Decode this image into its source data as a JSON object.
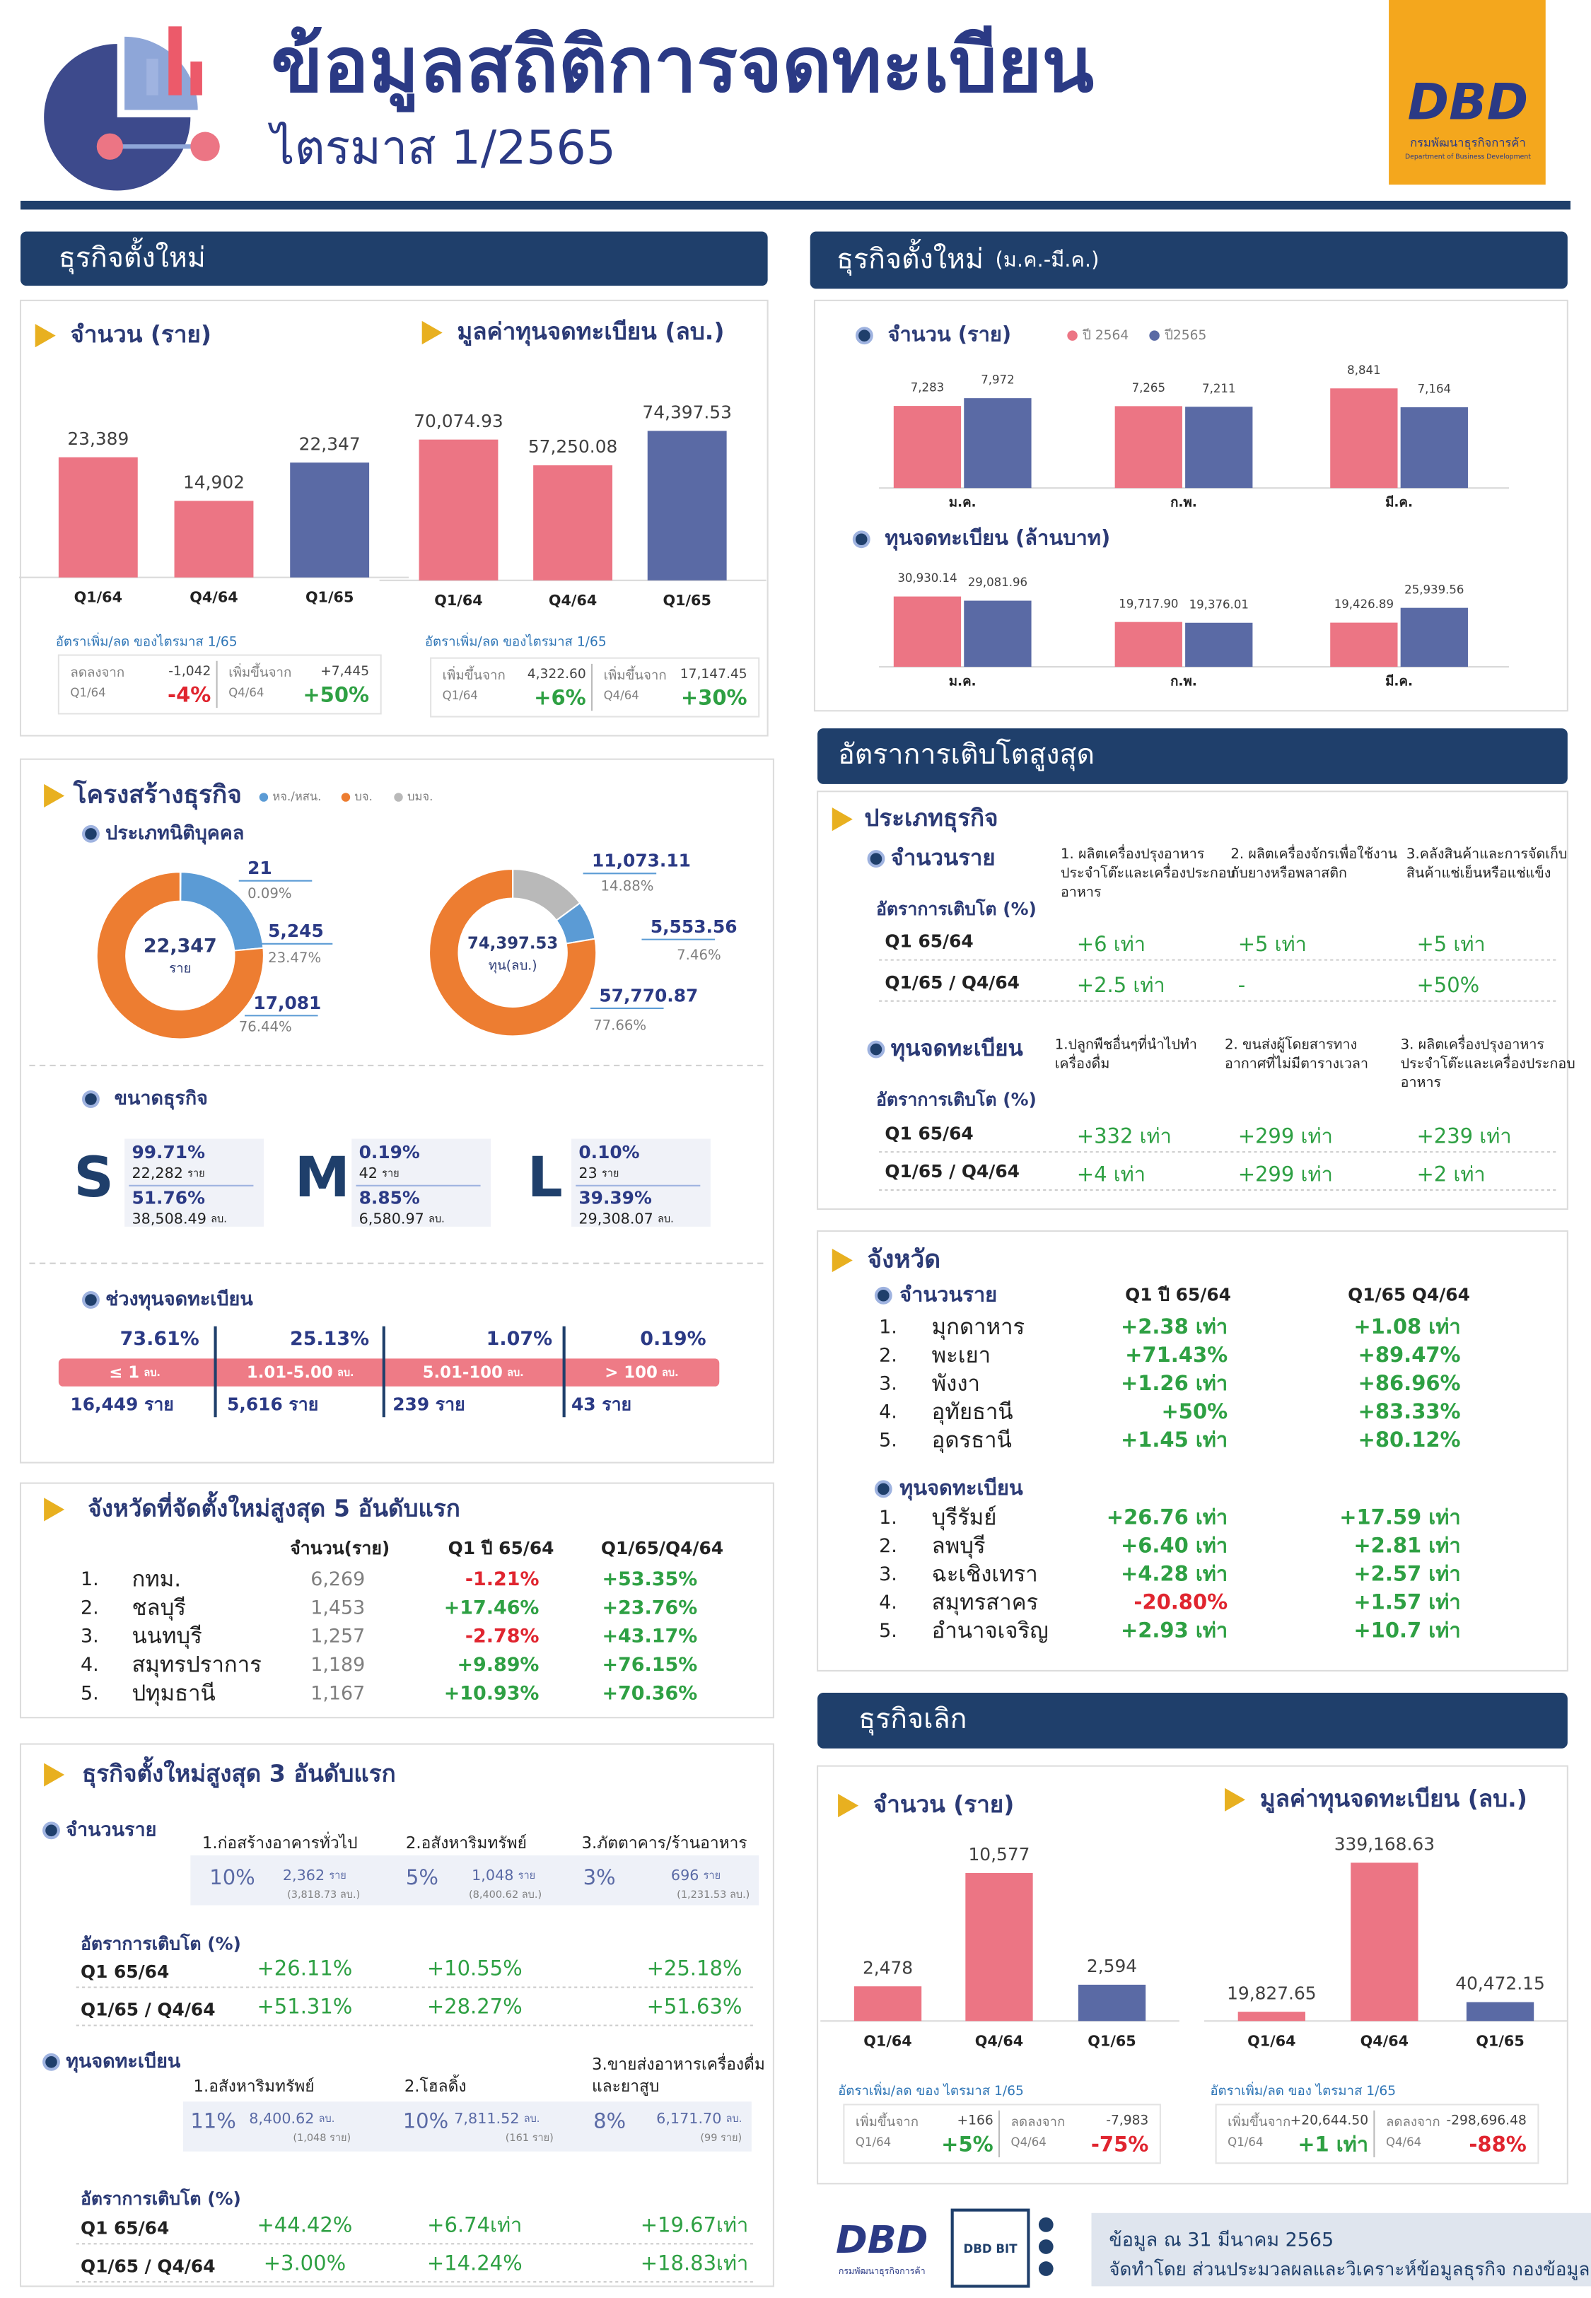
{
  "header": {
    "title": "ข้อมูลสถิติการจดทะเบียน",
    "subtitle": "ไตรมาส 1/2565",
    "logo": {
      "mark": "DBD",
      "name_th": "กรมพัฒนาธุรกิจการค้า",
      "name_en": "Department of Business Development"
    }
  },
  "new_business": {
    "heading": "ธุรกิจตั้งใหม่",
    "count_note": "อัตราเพิ่ม/ลด ของไตรมาส 1/65",
    "capital_note": "อัตราเพิ่ม/ลด ของไตรมาส 1/65",
    "count_change": [
      {
        "label": "ลดลงจาก",
        "period": "Q1/64",
        "amount": "-1,042",
        "percent": "-4%"
      },
      {
        "label": "เพิ่มขึ้นจาก",
        "period": "Q4/64",
        "amount": "+7,445",
        "percent": "+50%"
      }
    ],
    "capital_change": [
      {
        "label": "เพิ่มขึ้นจาก",
        "period": "Q1/64",
        "amount": "4,322.60",
        "percent": "+6%"
      },
      {
        "label": "เพิ่มขึ้นจาก",
        "period": "Q4/64",
        "amount": "17,147.45",
        "percent": "+30%"
      }
    ]
  },
  "monthly": {
    "heading": "ธุรกิจตั้งใหม่",
    "heading_sub": "(ม.ค.-มี.ค.)"
  },
  "chart_data": [
    {
      "type": "bar",
      "title": "จำนวน (ราย)",
      "categories": [
        "Q1/64",
        "Q4/64",
        "Q1/65"
      ],
      "values": [
        23389,
        14902,
        22347
      ],
      "value_labels": [
        "23,389",
        "14,902",
        "22,347"
      ],
      "colors": [
        "#ec7584",
        "#ec7584",
        "#5a6aa5"
      ]
    },
    {
      "type": "bar",
      "title": "มูลค่าทุนจดทะเบียน (ลบ.)",
      "categories": [
        "Q1/64",
        "Q4/64",
        "Q1/65"
      ],
      "values": [
        70074.93,
        57250.08,
        74397.53
      ],
      "value_labels": [
        "70,074.93",
        "57,250.08",
        "74,397.53"
      ],
      "colors": [
        "#ec7584",
        "#ec7584",
        "#5a6aa5"
      ]
    },
    {
      "type": "grouped_bar",
      "title": "จำนวน (ราย)",
      "categories": [
        "ม.ค.",
        "ก.พ.",
        "มี.ค."
      ],
      "series": [
        {
          "name": "ปี 2564",
          "color": "#ec7584",
          "values": [
            7283,
            7265,
            8841
          ],
          "value_labels": [
            "7,283",
            "7,265",
            "8,841"
          ]
        },
        {
          "name": "ปี2565",
          "color": "#5a6aa5",
          "values": [
            7972,
            7211,
            7164
          ],
          "value_labels": [
            "7,972",
            "7,211",
            "7,164"
          ]
        }
      ]
    },
    {
      "type": "grouped_bar",
      "title": "ทุนจดทะเบียน (ล้านบาท)",
      "categories": [
        "ม.ค.",
        "ก.พ.",
        "มี.ค."
      ],
      "series": [
        {
          "color": "#ec7584",
          "values": [
            30930.14,
            19717.9,
            19426.89
          ],
          "value_labels": [
            "30,930.14",
            "19,717.90",
            "19,426.89"
          ]
        },
        {
          "color": "#5a6aa5",
          "values": [
            29081.96,
            19376.01,
            25939.56
          ],
          "value_labels": [
            "29,081.96",
            "19,376.01",
            "25,939.56"
          ]
        }
      ]
    },
    {
      "type": "bar",
      "title": "จำนวน (ราย)",
      "categories": [
        "Q1/64",
        "Q4/64",
        "Q1/65"
      ],
      "values": [
        2478,
        10577,
        2594
      ],
      "value_labels": [
        "2,478",
        "10,577",
        "2,594"
      ],
      "colors": [
        "#ec7584",
        "#ec7584",
        "#5a6aa5"
      ]
    },
    {
      "type": "bar",
      "title": "มูลค่าทุนจดทะเบียน (ลบ.)",
      "categories": [
        "Q1/64",
        "Q4/64",
        "Q1/65"
      ],
      "values": [
        19827.65,
        339168.63,
        40472.15
      ],
      "value_labels": [
        "19,827.65",
        "339,168.63",
        "40,472.15"
      ],
      "colors": [
        "#ec7584",
        "#ec7584",
        "#5a6aa5"
      ]
    },
    {
      "type": "donut",
      "total_label": "22,347",
      "unit": "ราย",
      "values": [
        21,
        5245,
        17081
      ],
      "value_labels": [
        "21",
        "5,245",
        "17,081"
      ],
      "share_labels": [
        "0.09%",
        "23.47%",
        "76.44%"
      ],
      "colors": [
        "#b9b9b9",
        "#5b9bd5",
        "#ed7d31"
      ]
    },
    {
      "type": "donut",
      "total_label": "74,397.53",
      "unit": "ทุน(ลบ.)",
      "values": [
        11073.11,
        5553.56,
        57770.87
      ],
      "value_labels": [
        "11,073.11",
        "5,553.56",
        "57,770.87"
      ],
      "share_labels": [
        "14.88%",
        "7.46%",
        "77.66%"
      ],
      "colors": [
        "#b9b9b9",
        "#5b9bd5",
        "#ed7d31"
      ]
    }
  ],
  "growth": {
    "heading": "อัตราการเติบโตสูงสุด",
    "title": "ประเภทธุรกิจ",
    "groups": [
      {
        "title": "จำนวนราย",
        "columns": [
          [
            "1. ผลิตเครื่องปรุงอาหาร",
            "ประจำโต๊ะและเครื่องประกอบ",
            "อาหาร"
          ],
          [
            "2. ผลิตเครื่องจักรเพื่อใช้งาน",
            "กับยางหรือพลาสติก"
          ],
          [
            "3.คลังสินค้าและการจัดเก็บ",
            "สินค้าแช่เย็นหรือแช่แข็ง"
          ]
        ],
        "rate_title": "อัตราการเติบโต (%)",
        "rows": [
          {
            "period": "Q1 65/64",
            "values": [
              "+6 เท่า",
              "+5 เท่า",
              "+5 เท่า"
            ]
          },
          {
            "period": "Q1/65 / Q4/64",
            "values": [
              "+2.5 เท่า",
              "-",
              "+50%"
            ]
          }
        ]
      },
      {
        "title": "ทุนจดทะเบียน",
        "columns": [
          [
            "1.ปลูกพืชอื่นๆที่นำไปทำ",
            "เครื่องดื่ม"
          ],
          [
            "2. ขนส่งผู้โดยสารทาง",
            "อากาศที่ไม่มีตารางเวลา"
          ],
          [
            "3. ผลิตเครื่องปรุงอาหาร",
            "ประจำโต๊ะและเครื่องประกอบ",
            "อาหาร"
          ]
        ],
        "rate_title": "อัตราการเติบโต (%)",
        "rows": [
          {
            "period": "Q1 65/64",
            "values": [
              "+332 เท่า",
              "+299 เท่า",
              "+239 เท่า"
            ]
          },
          {
            "period": "Q1/65 / Q4/64",
            "values": [
              "+4 เท่า",
              "+299 เท่า",
              "+2 เท่า"
            ]
          }
        ]
      }
    ]
  },
  "province": {
    "title": "จังหวัด",
    "headers": [
      "Q1 ปี 65/64",
      "Q1/65 Q4/64"
    ],
    "groups": [
      {
        "title": "จำนวนราย",
        "rows": [
          {
            "rank": "1.",
            "name": "มุกดาหาร",
            "values": [
              "+2.38 เท่า",
              "+1.08 เท่า"
            ]
          },
          {
            "rank": "2.",
            "name": "พะเยา",
            "values": [
              "+71.43%",
              "+89.47%"
            ]
          },
          {
            "rank": "3.",
            "name": "พังงา",
            "values": [
              "+1.26 เท่า",
              "+86.96%"
            ]
          },
          {
            "rank": "4.",
            "name": "อุทัยธานี",
            "values": [
              "+50%",
              "+83.33%"
            ]
          },
          {
            "rank": "5.",
            "name": "อุดรธานี",
            "values": [
              "+1.45 เท่า",
              "+80.12%"
            ]
          }
        ]
      },
      {
        "title": "ทุนจดทะเบียน",
        "rows": [
          {
            "rank": "1.",
            "name": "บุรีรัมย์",
            "values": [
              "+26.76 เท่า",
              "+17.59 เท่า"
            ]
          },
          {
            "rank": "2.",
            "name": "ลพบุรี",
            "values": [
              "+6.40 เท่า",
              "+2.81 เท่า"
            ]
          },
          {
            "rank": "3.",
            "name": "ฉะเชิงเทรา",
            "values": [
              "+4.28 เท่า",
              "+2.57 เท่า"
            ]
          },
          {
            "rank": "4.",
            "name": "สมุทรสาคร",
            "values": [
              "-20.80%",
              "+1.57 เท่า"
            ]
          },
          {
            "rank": "5.",
            "name": "อำนาจเจริญ",
            "values": [
              "+2.93 เท่า",
              "+10.7 เท่า"
            ]
          }
        ]
      }
    ]
  },
  "closed": {
    "heading": "ธุรกิจเลิก",
    "count_note": "อัตราเพิ่ม/ลด  ของ ไตรมาส 1/65",
    "capital_note": "อัตราเพิ่ม/ลด ของ ไตรมาส 1/65",
    "count_change": [
      {
        "label": "เพิ่มขึ้นจาก",
        "period": "Q1/64",
        "amount": "+166",
        "percent": "+5%"
      },
      {
        "label": "ลดลงจาก",
        "period": "Q4/64",
        "amount": "-7,983",
        "percent": "-75%"
      }
    ],
    "capital_change": [
      {
        "label": "เพิ่มขึ้นจาก",
        "period": "Q1/64",
        "amount": "+20,644.50",
        "percent": "+1 เท่า"
      },
      {
        "label": "ลดลงจาก",
        "period": "Q4/64",
        "amount": "-298,696.48",
        "percent": "-88%"
      }
    ]
  },
  "structure": {
    "title": "โครงสร้างธุรกิจ",
    "legend": [
      {
        "name": "หจ./หสน.",
        "color": "#5b9bd5"
      },
      {
        "name": "บจ.",
        "color": "#ed7d31"
      },
      {
        "name": "บมจ.",
        "color": "#b9b9b9"
      }
    ],
    "legal_type": "ประเภทนิติบุคคล",
    "size": {
      "title": "ขนาดธุรกิจ",
      "items": [
        {
          "letter": "S",
          "count_share": "99.71%",
          "count": "22,282",
          "count_unit": "ราย",
          "capital_share": "51.76%",
          "capital": "38,508.49",
          "capital_unit": "ลบ."
        },
        {
          "letter": "M",
          "count_share": "0.19%",
          "count": "42",
          "count_unit": "ราย",
          "capital_share": "8.85%",
          "capital": "6,580.97",
          "capital_unit": "ลบ."
        },
        {
          "letter": "L",
          "count_share": "0.10%",
          "count": "23",
          "count_unit": "ราย",
          "capital_share": "39.39%",
          "capital": "29,308.07",
          "capital_unit": "ลบ."
        }
      ]
    },
    "capital_range": {
      "title": "ช่วงทุนจดทะเบียน",
      "items": [
        {
          "share": "73.61%",
          "range": "≤ 1",
          "unit": "ลบ.",
          "count": "16,449 ราย"
        },
        {
          "share": "25.13%",
          "range": "1.01-5.00",
          "unit": "ลบ.",
          "count": "5,616 ราย"
        },
        {
          "share": "1.07%",
          "range": "5.01-100",
          "unit": "ลบ.",
          "count": "239 ราย"
        },
        {
          "share": "0.19%",
          "range": "> 100",
          "unit": "ลบ.",
          "count": "43 ราย"
        }
      ]
    }
  },
  "top_provinces": {
    "title": "จังหวัดที่จัดตั้งใหม่สูงสุด 5 อันดับแรก",
    "headers": [
      "จำนวน(ราย)",
      "Q1 ปี 65/64",
      "Q1/65/Q4/64"
    ],
    "rows": [
      {
        "rank": "1.",
        "name": "กทม.",
        "count": "6,269",
        "yoy": "-1.21%",
        "qoq": "+53.35%"
      },
      {
        "rank": "2.",
        "name": "ชลบุรี",
        "count": "1,453",
        "yoy": "+17.46%",
        "qoq": "+23.76%"
      },
      {
        "rank": "3.",
        "name": "นนทบุรี",
        "count": "1,257",
        "yoy": "-2.78%",
        "qoq": "+43.17%"
      },
      {
        "rank": "4.",
        "name": "สมุทรปราการ",
        "count": "1,189",
        "yoy": "+9.89%",
        "qoq": "+76.15%"
      },
      {
        "rank": "5.",
        "name": "ปทุมธานี",
        "count": "1,167",
        "yoy": "+10.93%",
        "qoq": "+70.36%"
      }
    ]
  },
  "top_types": {
    "title": "ธุรกิจตั้งใหม่สูงสุด 3 อันดับแรก",
    "groups": [
      {
        "title": "จำนวนราย",
        "columns": [
          {
            "name": [
              "1.ก่อสร้างอาคารทั่วไป"
            ],
            "share": "10%",
            "main": "2,362",
            "main_unit": "ราย",
            "sub": "(3,818.73 ลบ.)"
          },
          {
            "name": [
              "2.อสังหาริมทรัพย์"
            ],
            "share": "5%",
            "main": "1,048",
            "main_unit": "ราย",
            "sub": "(8,400.62 ลบ.)"
          },
          {
            "name": [
              "3.ภัตตาคาร/ร้านอาหาร"
            ],
            "share": "3%",
            "main": "696",
            "main_unit": "ราย",
            "sub": "(1,231.53 ลบ.)"
          }
        ],
        "rate_title": "อัตราการเติบโต (%)",
        "rows": [
          {
            "period": "Q1 65/64",
            "values": [
              "+26.11%",
              "+10.55%",
              "+25.18%"
            ]
          },
          {
            "period": "Q1/65 / Q4/64",
            "values": [
              "+51.31%",
              "+28.27%",
              "+51.63%"
            ]
          }
        ]
      },
      {
        "title": "ทุนจดทะเบียน",
        "columns": [
          {
            "name": [
              "1.อสังหาริมทรัพย์"
            ],
            "share": "11%",
            "main": "8,400.62",
            "main_unit": "ลบ.",
            "sub": "(1,048 ราย)"
          },
          {
            "name": [
              "2.โฮลดิ้ง"
            ],
            "share": "10%",
            "main": "7,811.52",
            "main_unit": "ลบ.",
            "sub": "(161 ราย)"
          },
          {
            "name": [
              "3.ขายส่งอาหารเครื่องดื่ม",
              "และยาสูบ"
            ],
            "share": "8%",
            "main": "6,171.70",
            "main_unit": "ลบ.",
            "sub": "(99 ราย)"
          }
        ],
        "rate_title": "อัตราการเติบโต (%)",
        "rows": [
          {
            "period": "Q1 65/64",
            "values": [
              "+44.42%",
              "+6.74เท่า",
              "+19.67เท่า"
            ]
          },
          {
            "period": "Q1/65 / Q4/64",
            "values": [
              "+3.00%",
              "+14.24%",
              "+18.83เท่า"
            ]
          }
        ]
      }
    ]
  },
  "footer": {
    "bit": "DBD BIT",
    "date": "ข้อมูล ณ 31 มีนาคม 2565",
    "by": "จัดทำโดย ส่วนประมวลผลและวิเคราะห์ข้อมูลธุรกิจ กองข้อมูลธุรกิจ"
  }
}
